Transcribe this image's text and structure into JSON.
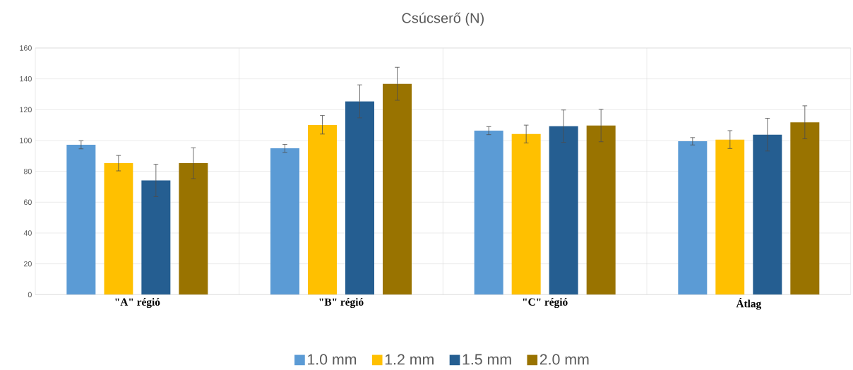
{
  "chart_data": {
    "type": "bar",
    "title": "Csúcserő (N)",
    "categories": [
      "\"A\" régió",
      "\"B\" régió",
      "\"C\" régió",
      "Átlag"
    ],
    "series": [
      {
        "name": "1.0 mm",
        "color": "#5b9bd5",
        "values": [
          97.2,
          94.9,
          106.4,
          99.5
        ],
        "errors": [
          2.6,
          2.6,
          2.6,
          2.4
        ]
      },
      {
        "name": "1.2 mm",
        "color": "#ffc000",
        "values": [
          85.3,
          110.2,
          104.2,
          100.6
        ],
        "errors": [
          5,
          6,
          5.8,
          5.8
        ]
      },
      {
        "name": "1.5 mm",
        "color": "#255e91",
        "values": [
          74.1,
          125.4,
          109.3,
          103.8
        ],
        "errors": [
          10.5,
          10.7,
          10.5,
          10.6
        ]
      },
      {
        "name": "2.0 mm",
        "color": "#997300",
        "values": [
          85.3,
          136.8,
          109.7,
          111.8
        ],
        "errors": [
          10,
          10.7,
          10.5,
          10.7
        ]
      }
    ],
    "ylim": [
      0,
      160
    ],
    "yticks": [
      0,
      20,
      40,
      60,
      80,
      100,
      120,
      140,
      160
    ],
    "grid": true,
    "legend": "bottom"
  }
}
